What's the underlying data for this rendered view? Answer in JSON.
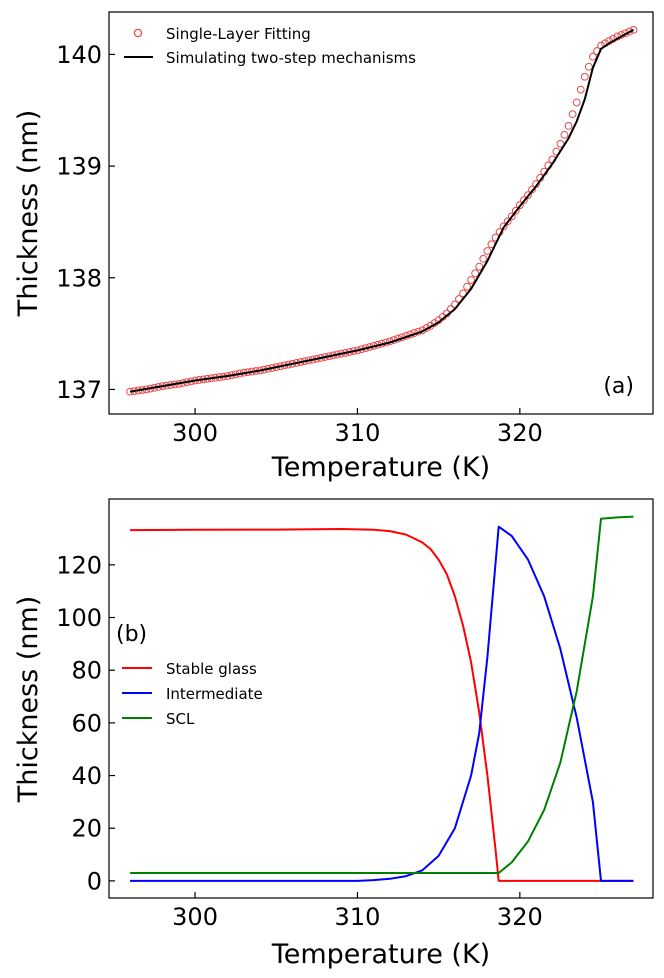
{
  "chart_data": [
    {
      "type": "scatter",
      "panel_label": "(a)",
      "xlabel": "Temperature (K)",
      "ylabel": "Thickness (nm)",
      "xlim": [
        294.7,
        328.2
      ],
      "ylim": [
        136.78,
        140.38
      ],
      "xticks": [
        300,
        310,
        320
      ],
      "yticks": [
        137,
        138,
        139,
        140
      ],
      "legend_position": "top-left",
      "series": [
        {
          "name": "Single-Layer Fitting",
          "style": "markers",
          "color": "#e8494b",
          "x": [
            296.0,
            297.0,
            298.0,
            299.0,
            300.0,
            301.0,
            302.0,
            303.0,
            304.0,
            305.0,
            306.0,
            307.0,
            308.0,
            309.0,
            310.0,
            311.0,
            312.0,
            313.0,
            314.0,
            314.5,
            315.0,
            315.5,
            316.0,
            316.5,
            317.0,
            317.5,
            318.0,
            318.5,
            319.0,
            319.5,
            320.0,
            320.5,
            321.0,
            321.5,
            322.0,
            322.5,
            323.0,
            323.5,
            324.0,
            324.5,
            325.0,
            325.5,
            326.0,
            326.5,
            327.0
          ],
          "y": [
            136.98,
            137.0,
            137.03,
            137.05,
            137.08,
            137.1,
            137.12,
            137.15,
            137.17,
            137.2,
            137.23,
            137.26,
            137.29,
            137.32,
            137.35,
            137.39,
            137.43,
            137.48,
            137.53,
            137.57,
            137.62,
            137.68,
            137.76,
            137.86,
            137.98,
            138.1,
            138.24,
            138.36,
            138.46,
            138.55,
            138.65,
            138.74,
            138.84,
            138.95,
            139.06,
            139.2,
            139.36,
            139.57,
            139.8,
            139.98,
            140.08,
            140.12,
            140.16,
            140.19,
            140.22
          ]
        },
        {
          "name": "Simulating two-step mechanisms",
          "style": "line",
          "color": "#000000",
          "x": [
            296.0,
            298.0,
            300.0,
            302.0,
            304.0,
            306.0,
            308.0,
            310.0,
            312.0,
            313.0,
            314.0,
            315.0,
            316.0,
            317.0,
            318.0,
            319.0,
            320.0,
            321.0,
            322.0,
            323.0,
            323.5,
            324.0,
            324.5,
            325.0,
            325.5,
            326.0,
            326.5,
            327.0
          ],
          "y": [
            136.98,
            137.03,
            137.08,
            137.12,
            137.17,
            137.23,
            137.29,
            137.35,
            137.42,
            137.47,
            137.52,
            137.6,
            137.72,
            137.9,
            138.15,
            138.45,
            138.64,
            138.82,
            139.02,
            139.25,
            139.4,
            139.6,
            139.88,
            140.05,
            140.1,
            140.14,
            140.18,
            140.22
          ]
        }
      ]
    },
    {
      "type": "line",
      "panel_label": "(b)",
      "xlabel": "Temperature (K)",
      "ylabel": "Thickness (nm)",
      "xlim": [
        294.7,
        328.2
      ],
      "ylim": [
        -6.5,
        145
      ],
      "xticks": [
        300,
        310,
        320
      ],
      "yticks": [
        0,
        20,
        40,
        60,
        80,
        100,
        120
      ],
      "legend_position": "center-left",
      "series": [
        {
          "name": "Stable glass",
          "color": "#ff0000",
          "x": [
            296.0,
            300.0,
            305.0,
            309.0,
            311.0,
            312.0,
            313.0,
            314.0,
            314.5,
            315.0,
            315.5,
            316.0,
            316.5,
            317.0,
            317.5,
            318.0,
            318.5,
            318.7,
            320.0,
            325.0,
            327.0
          ],
          "y": [
            133.2,
            133.3,
            133.4,
            133.6,
            133.3,
            132.8,
            131.5,
            128.5,
            126.0,
            122.0,
            116.5,
            108.0,
            97.0,
            83.0,
            64.0,
            40.0,
            12.0,
            0.0,
            0.0,
            0.0,
            0.0
          ]
        },
        {
          "name": "Intermediate",
          "color": "#0000ff",
          "x": [
            296.0,
            305.0,
            310.0,
            311.0,
            312.0,
            313.0,
            314.0,
            315.0,
            316.0,
            317.0,
            317.5,
            318.0,
            318.7,
            319.5,
            320.5,
            321.5,
            322.5,
            323.5,
            324.5,
            325.0,
            327.0
          ],
          "y": [
            0.0,
            0.0,
            0.0,
            0.3,
            0.8,
            1.8,
            4.0,
            9.5,
            20.0,
            40.0,
            56.0,
            85.0,
            134.5,
            131.0,
            122.0,
            108.0,
            88.0,
            62.0,
            30.0,
            0.0,
            0.0
          ]
        },
        {
          "name": "SCL",
          "color": "#008000",
          "x": [
            296.0,
            300.0,
            305.0,
            310.0,
            315.0,
            318.7,
            319.5,
            320.5,
            321.5,
            322.5,
            323.5,
            324.5,
            325.0,
            326.0,
            327.0
          ],
          "y": [
            3.0,
            3.0,
            3.0,
            3.0,
            3.0,
            3.0,
            7.0,
            15.0,
            27.0,
            45.0,
            72.0,
            108.0,
            137.5,
            138.0,
            138.3
          ]
        }
      ]
    }
  ]
}
